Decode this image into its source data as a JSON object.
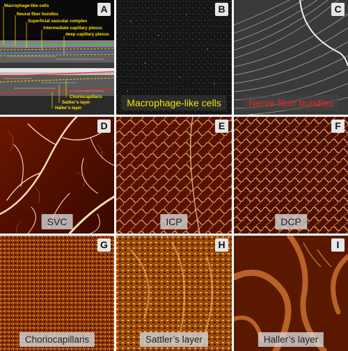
{
  "panels": {
    "A": {
      "letter": "A"
    },
    "B": {
      "letter": "B",
      "caption": "Macrophage-like cells",
      "caption_color": "#f2e600"
    },
    "C": {
      "letter": "C",
      "caption": "Nerve fiber bundles",
      "caption_color": "#e8261e"
    },
    "D": {
      "letter": "D",
      "caption": "SVC"
    },
    "E": {
      "letter": "E",
      "caption": "ICP"
    },
    "F": {
      "letter": "F",
      "caption": "DCP"
    },
    "G": {
      "letter": "G",
      "caption": "Choriocapillaris"
    },
    "H": {
      "letter": "H",
      "caption": "Sattler’s layer"
    },
    "I": {
      "letter": "I",
      "caption": "Haller’s layer"
    }
  },
  "oct_annotations": {
    "macrophage": "Macrophage-like cells",
    "nerve": "Neural fiber bundles",
    "svc": "Superficial vascular complex",
    "icp": "intermediate capillary plexus",
    "dcp": "deep capillary plexus",
    "chorio": "Choriocapillaris",
    "sattler": "Sattler’s layer",
    "haller": "Haller’s layer"
  },
  "colors": {
    "annotation": "#ffe100",
    "angio_dark": "#3a0800",
    "angio_light": "#ffe6b0"
  }
}
